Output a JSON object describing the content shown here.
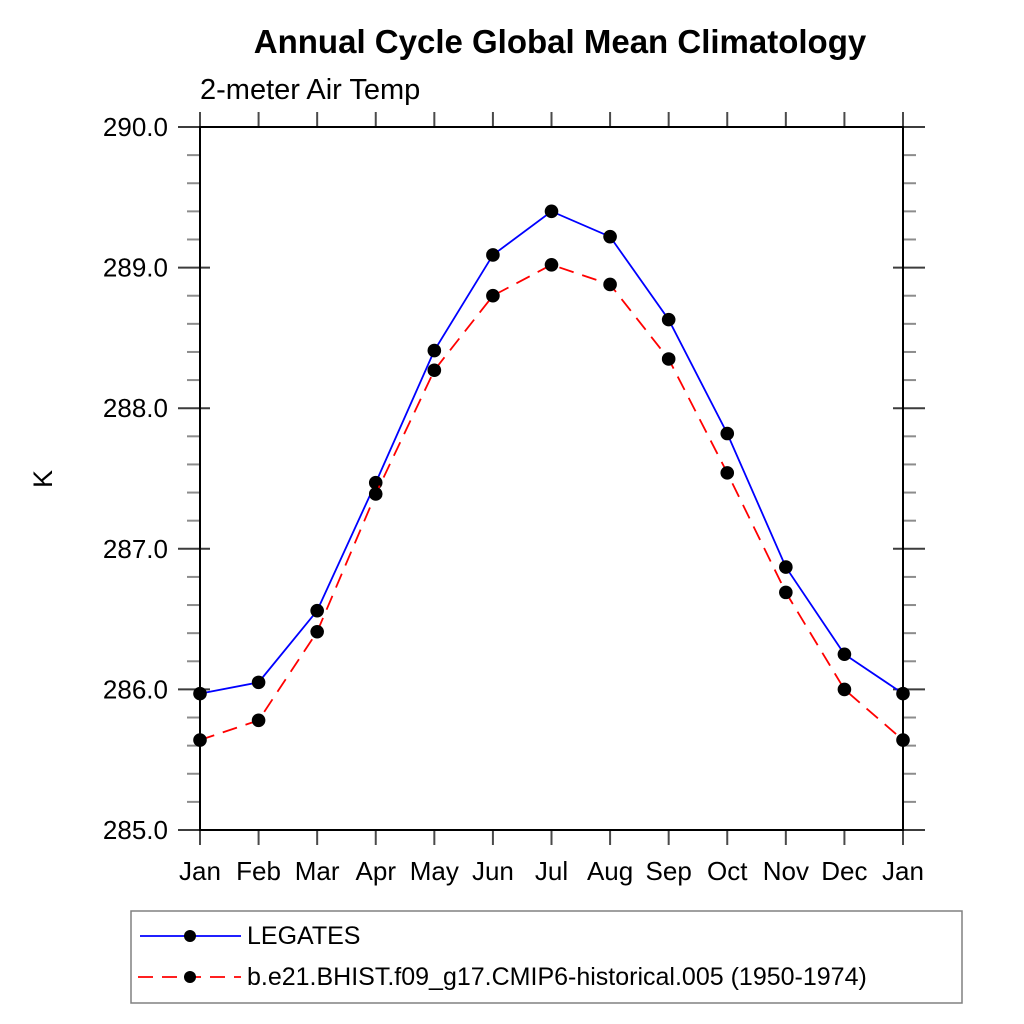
{
  "chart": {
    "title": "Annual Cycle Global Mean Climatology",
    "subtitle": "2-meter Air Temp",
    "ylabel": "K"
  },
  "chart_data": {
    "type": "line",
    "title": "Annual Cycle Global Mean Climatology",
    "subtitle": "2-meter Air Temp",
    "xlabel": "",
    "ylabel": "K",
    "categories": [
      "Jan",
      "Feb",
      "Mar",
      "Apr",
      "May",
      "Jun",
      "Jul",
      "Aug",
      "Sep",
      "Oct",
      "Nov",
      "Dec",
      "Jan"
    ],
    "series": [
      {
        "name": "LEGATES",
        "color": "#0000ff",
        "line_style": "solid",
        "marker": "filled-circle",
        "marker_color": "#000000",
        "values": [
          285.97,
          286.05,
          286.56,
          287.47,
          288.41,
          289.09,
          289.4,
          289.22,
          288.63,
          287.82,
          286.87,
          286.25,
          285.97
        ]
      },
      {
        "name": "b.e21.BHIST.f09_g17.CMIP6-historical.005 (1950-1974)",
        "color": "#ff0000",
        "line_style": "dashed",
        "marker": "filled-circle",
        "marker_color": "#000000",
        "values": [
          285.64,
          285.78,
          286.41,
          287.39,
          288.27,
          288.8,
          289.02,
          288.88,
          288.35,
          287.54,
          286.69,
          286.0,
          285.64
        ]
      }
    ],
    "ylim": [
      285.0,
      290.0
    ],
    "y_major_step": 1.0,
    "y_minor_step": 0.2,
    "y_tick_labels": [
      "285.0",
      "286.0",
      "287.0",
      "288.0",
      "289.0",
      "290.0"
    ],
    "grid": false,
    "legend_position": "bottom-left",
    "frame_color": "#000000",
    "legend_border_color": "#808080"
  }
}
